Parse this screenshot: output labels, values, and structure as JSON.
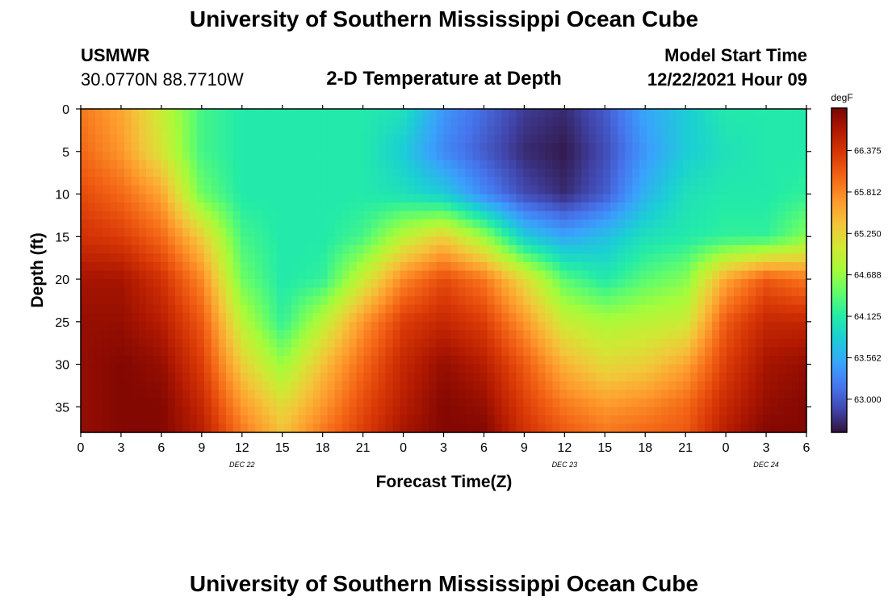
{
  "title": "University of Southern Mississippi Ocean Cube",
  "station": {
    "name": "USMWR",
    "coords": "30.0770N  88.7710W"
  },
  "model": {
    "label": "Model Start Time",
    "value": "12/22/2021 Hour 09"
  },
  "footer_title": "University of Southern Mississippi Ocean Cube",
  "chart_data": {
    "type": "heatmap",
    "title": "2-D Temperature at Depth",
    "xlabel": "Forecast Time(Z)",
    "ylabel": "Depth (ft)",
    "unit": "degF",
    "x_ticks": [
      "0",
      "3",
      "6",
      "9",
      "12",
      "15",
      "18",
      "21",
      "0",
      "3",
      "6",
      "9",
      "12",
      "15",
      "18",
      "21",
      "0",
      "3",
      "6"
    ],
    "x_tick_hours": [
      0,
      3,
      6,
      9,
      12,
      15,
      18,
      21,
      24,
      27,
      30,
      33,
      36,
      39,
      42,
      45,
      48,
      51,
      54
    ],
    "date_labels": [
      {
        "text": "DEC 22",
        "hour": 12
      },
      {
        "text": "DEC 23",
        "hour": 36
      },
      {
        "text": "DEC 24",
        "hour": 51
      }
    ],
    "y_ticks": [
      0,
      5,
      10,
      15,
      20,
      25,
      30,
      35
    ],
    "ylim": [
      38,
      0
    ],
    "xlim": [
      0,
      54
    ],
    "colorbar": {
      "ticks": [
        "63.000",
        "63.562",
        "64.125",
        "64.688",
        "65.250",
        "65.812",
        "66.375"
      ],
      "range": [
        62.55,
        66.95
      ]
    },
    "x_hours": [
      0,
      3,
      6,
      9,
      12,
      15,
      18,
      21,
      24,
      27,
      30,
      33,
      36,
      39,
      42,
      45,
      48,
      51,
      54
    ],
    "depths": [
      0,
      5,
      10,
      15,
      20,
      25,
      30,
      35,
      38
    ],
    "values": [
      [
        65.9,
        65.6,
        65.0,
        64.3,
        64.1,
        64.1,
        64.1,
        64.1,
        64.0,
        63.4,
        63.1,
        62.8,
        62.7,
        63.0,
        63.5,
        63.8,
        64.1,
        64.1,
        64.1
      ],
      [
        66.0,
        65.7,
        65.1,
        64.3,
        64.1,
        64.1,
        64.1,
        64.1,
        63.8,
        63.3,
        63.0,
        62.7,
        62.6,
        62.9,
        63.4,
        63.8,
        64.0,
        64.1,
        64.1
      ],
      [
        66.2,
        66.0,
        65.6,
        64.5,
        64.1,
        64.1,
        64.1,
        64.1,
        64.0,
        63.8,
        63.3,
        62.9,
        62.7,
        63.0,
        63.6,
        64.0,
        64.1,
        64.1,
        64.2
      ],
      [
        66.4,
        66.3,
        66.0,
        65.3,
        64.3,
        64.1,
        64.1,
        64.3,
        64.9,
        65.3,
        64.7,
        63.8,
        63.5,
        63.7,
        64.0,
        64.1,
        64.2,
        64.2,
        64.6
      ],
      [
        66.7,
        66.7,
        66.4,
        65.8,
        64.5,
        64.1,
        64.2,
        65.0,
        65.8,
        66.2,
        65.9,
        65.2,
        64.4,
        64.1,
        64.4,
        64.6,
        65.6,
        66.1,
        65.9
      ],
      [
        66.8,
        66.8,
        66.6,
        66.1,
        64.9,
        64.2,
        64.9,
        65.7,
        66.3,
        66.5,
        66.3,
        65.7,
        65.0,
        64.8,
        64.9,
        65.0,
        66.1,
        66.5,
        66.5
      ],
      [
        66.8,
        66.9,
        66.8,
        66.3,
        65.3,
        64.7,
        65.4,
        66.0,
        66.5,
        66.8,
        66.6,
        66.1,
        65.5,
        65.2,
        65.3,
        65.6,
        66.3,
        66.7,
        66.8
      ],
      [
        66.8,
        66.9,
        66.9,
        66.5,
        65.7,
        65.2,
        65.7,
        66.2,
        66.6,
        66.9,
        66.8,
        66.3,
        65.9,
        65.7,
        65.8,
        66.0,
        66.5,
        66.8,
        66.9
      ],
      [
        66.8,
        66.9,
        66.9,
        66.6,
        65.9,
        65.4,
        65.9,
        66.3,
        66.7,
        66.9,
        66.9,
        66.4,
        66.1,
        65.9,
        66.0,
        66.1,
        66.6,
        66.9,
        66.9
      ]
    ]
  }
}
